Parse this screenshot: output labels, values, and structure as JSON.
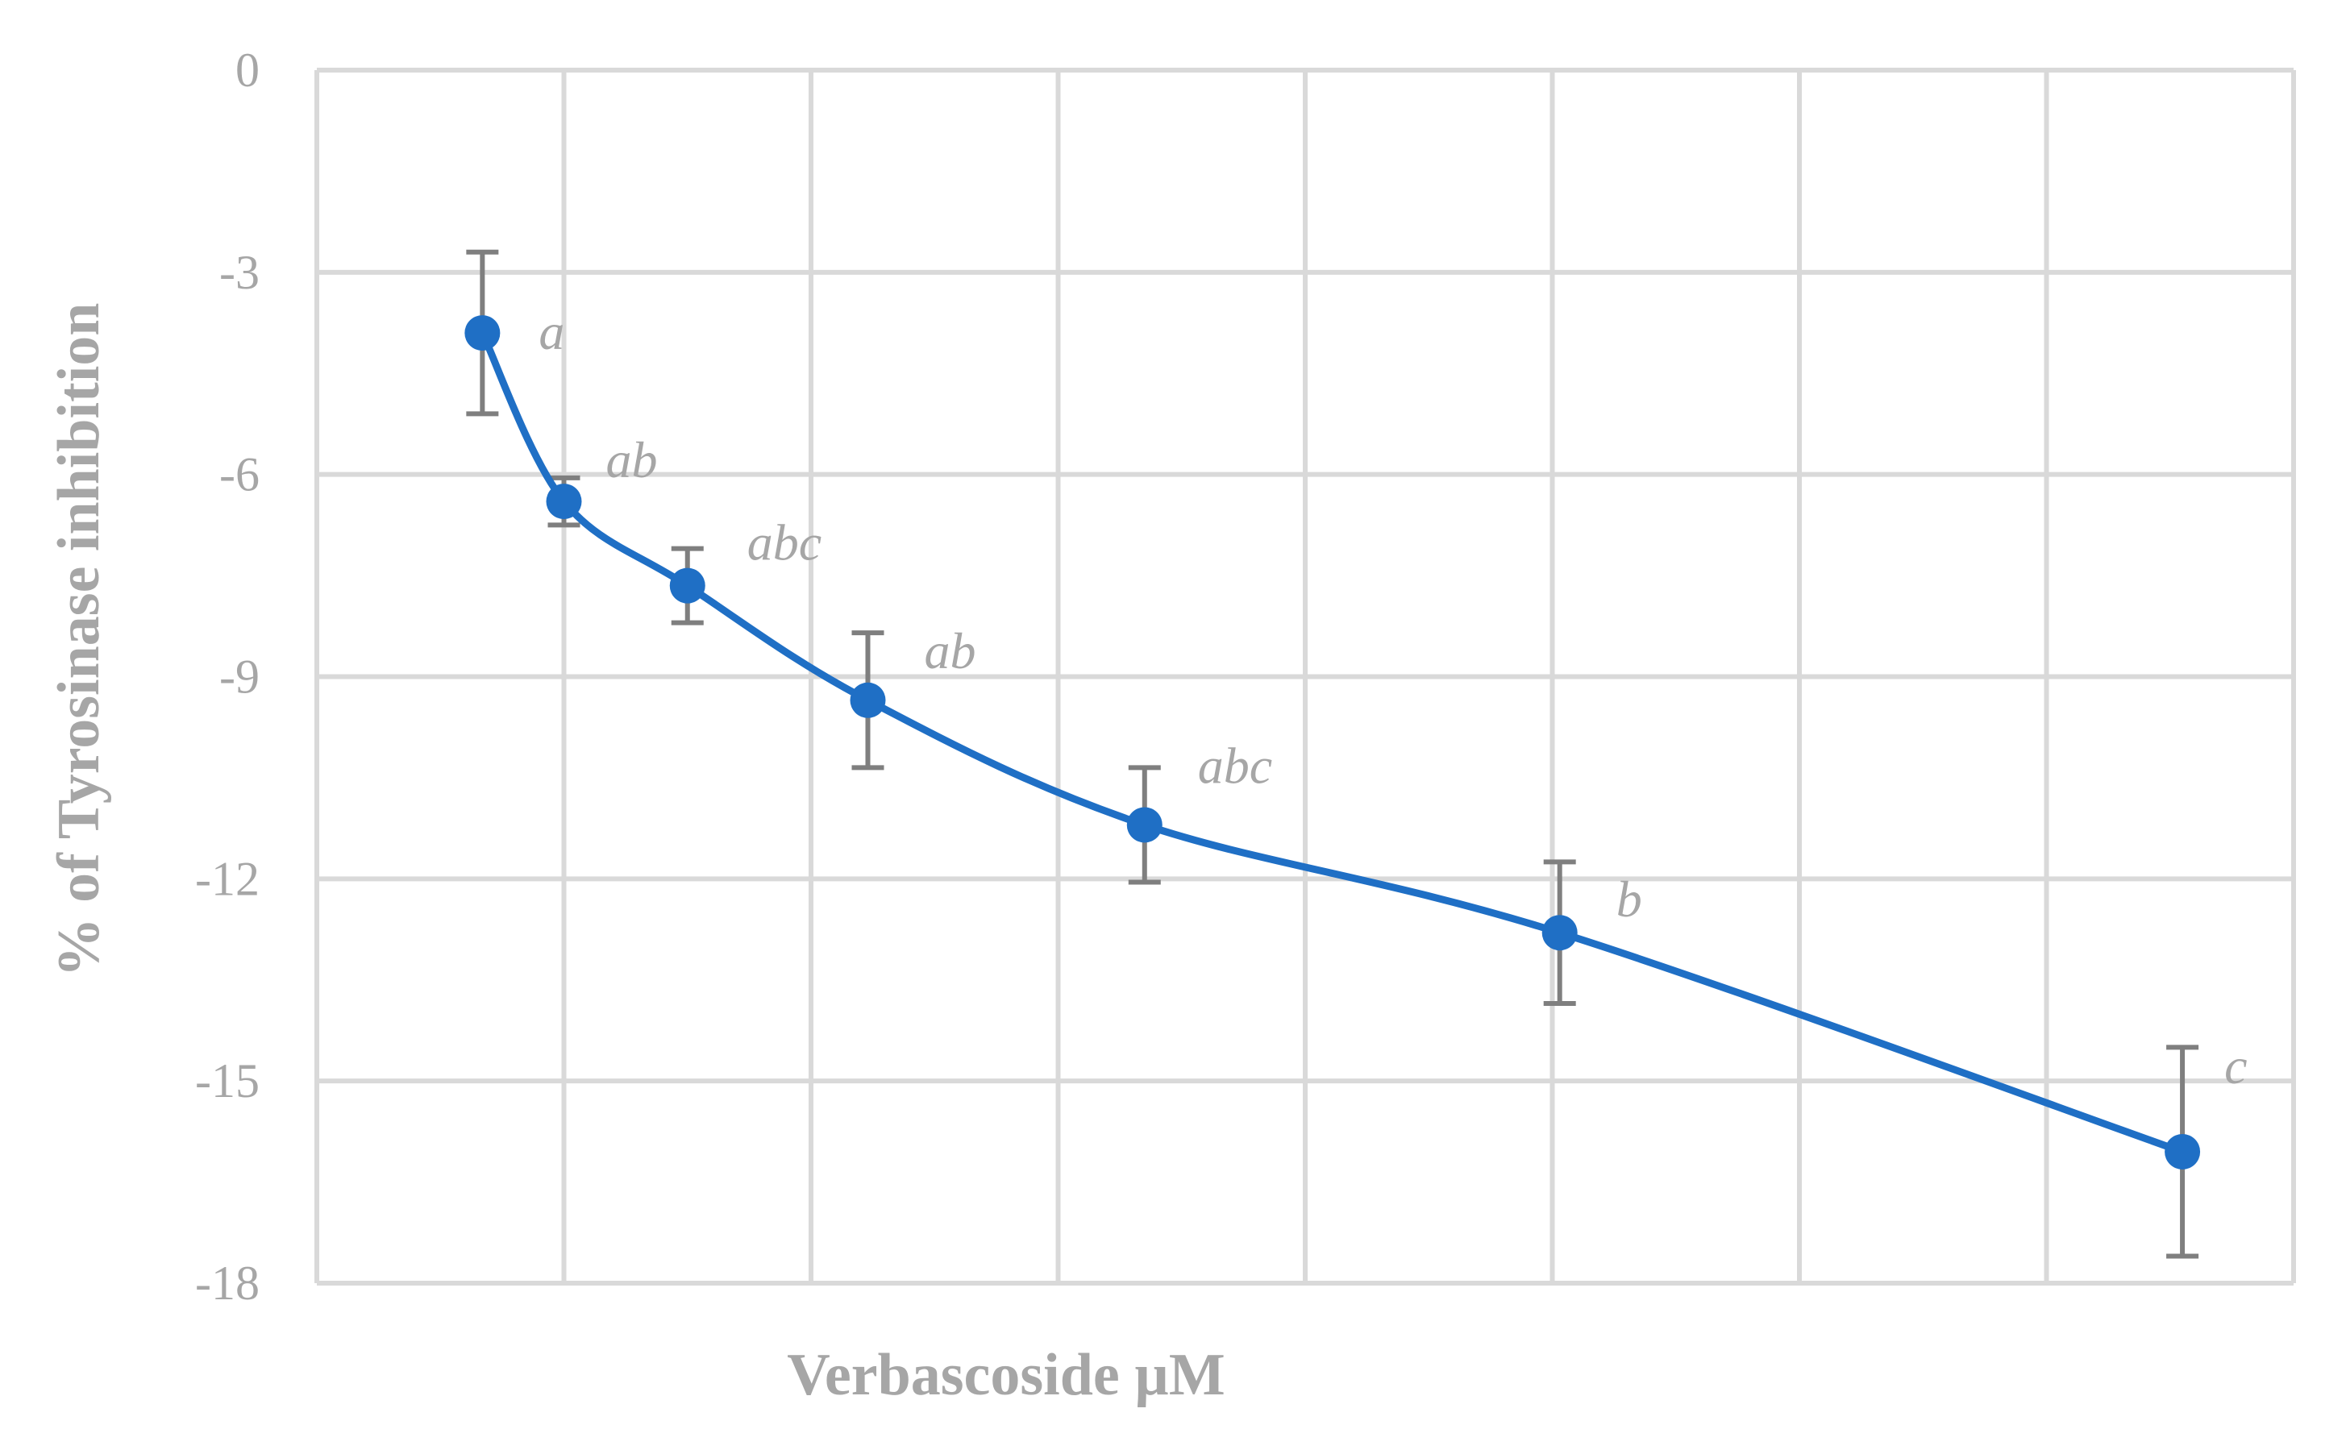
{
  "chart_data": {
    "type": "line",
    "title": "",
    "xlabel": "Verbascoside µM",
    "ylabel": "% of Tyrosinase inhibition",
    "ylim": [
      -18,
      0
    ],
    "y_ticks": [
      0,
      -3,
      -6,
      -9,
      -12,
      -15,
      -18
    ],
    "x_category_count": 8,
    "grid": true,
    "x_tick_labels_shown": false,
    "series": [
      {
        "color": "#1f6fc5",
        "smooth": true,
        "points": [
          {
            "x": 0.67,
            "y": -3.9,
            "err": 1.2,
            "label": "a"
          },
          {
            "x": 1.0,
            "y": -6.4,
            "err": 0.35,
            "label": "ab"
          },
          {
            "x": 1.5,
            "y": -7.65,
            "err": 0.55,
            "label": "abc"
          },
          {
            "x": 2.23,
            "y": -9.35,
            "err": 1.0,
            "label": "ab"
          },
          {
            "x": 3.35,
            "y": -11.2,
            "err": 0.85,
            "label": "abc"
          },
          {
            "x": 5.03,
            "y": -12.8,
            "err": 1.05,
            "label": "b"
          },
          {
            "x": 7.55,
            "y": -16.05,
            "err": 1.55,
            "label": "c"
          }
        ]
      }
    ],
    "error_bar_color": "#7f7f7f",
    "grid_color": "#d9d9d9"
  }
}
